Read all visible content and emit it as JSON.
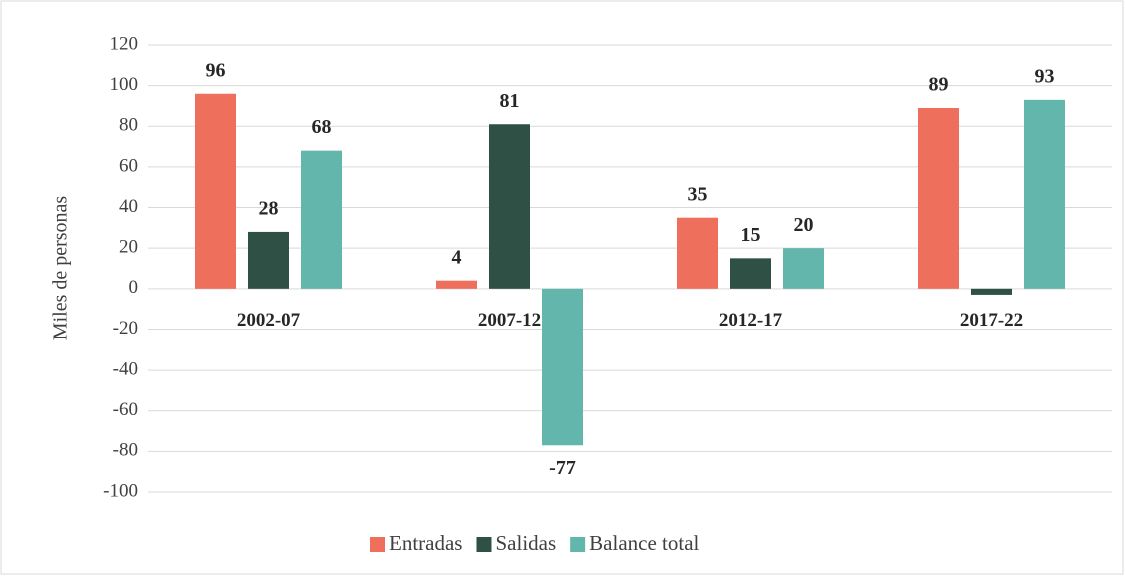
{
  "chart_data": {
    "type": "bar",
    "y_label": "Miles de personas",
    "categories": [
      "2002-07",
      "2007-12",
      "2012-17",
      "2017-22"
    ],
    "series": [
      {
        "name": "Entradas",
        "color": "#ef6f5d",
        "values": [
          96,
          4,
          35,
          89
        ],
        "value_labels": [
          "96",
          "4",
          "35",
          "89"
        ]
      },
      {
        "name": "Salidas",
        "color": "#2f5044",
        "values": [
          28,
          81,
          15,
          -3
        ],
        "value_labels": [
          "28",
          "81",
          "15",
          null
        ]
      },
      {
        "name": "Balance total",
        "color": "#62b6ab",
        "values": [
          68,
          -77,
          20,
          93
        ],
        "value_labels": [
          "68",
          "-77",
          "20",
          "93"
        ]
      }
    ],
    "ylim": [
      -100,
      120
    ],
    "yticks": [
      -100,
      -80,
      -60,
      -40,
      -20,
      0,
      20,
      40,
      60,
      80,
      100,
      120
    ],
    "grid": true,
    "legend": "bottom"
  }
}
